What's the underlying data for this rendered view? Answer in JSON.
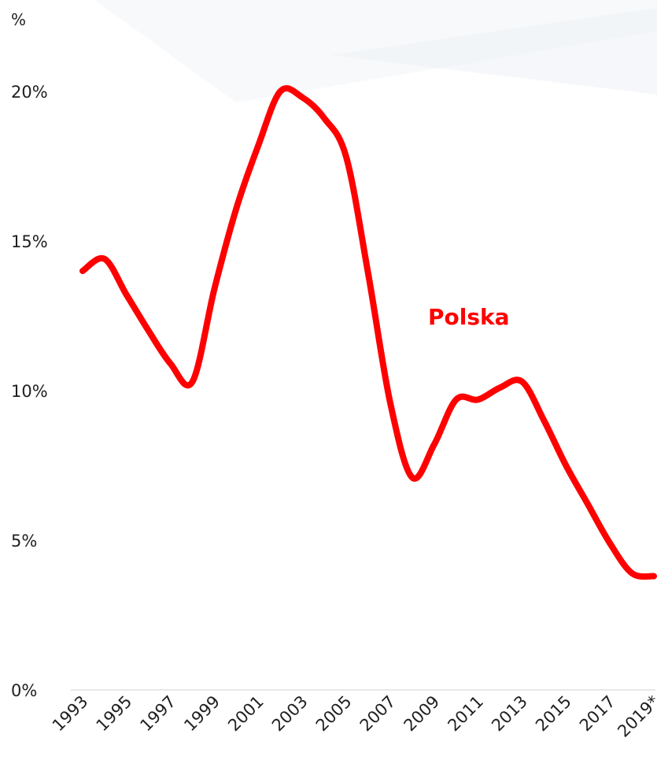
{
  "chart_data": {
    "type": "line",
    "title": "",
    "xlabel": "",
    "ylabel": "%",
    "ylim": [
      0,
      20
    ],
    "y_ticks": [
      0,
      5,
      10,
      15,
      20
    ],
    "y_tick_labels": [
      "0%",
      "5%",
      "10%",
      "15%",
      "20%"
    ],
    "x_tick_labels": [
      "1993",
      "1995",
      "1997",
      "1999",
      "2001",
      "2003",
      "2005",
      "2007",
      "2009",
      "2011",
      "2013",
      "2015",
      "2017",
      "2019*"
    ],
    "grid": false,
    "series": [
      {
        "name": "Polska",
        "color": "#ff0000",
        "x": [
          1993,
          1994,
          1995,
          1996,
          1997,
          1998,
          1999,
          2000,
          2001,
          2002,
          2003,
          2004,
          2005,
          2006,
          2007,
          2008,
          2009,
          2010,
          2011,
          2012,
          2013,
          2014,
          2015,
          2016,
          2017,
          2018,
          2019
        ],
        "y": [
          14.0,
          14.4,
          13.2,
          12.0,
          10.9,
          10.3,
          13.4,
          16.1,
          18.2,
          20.0,
          19.8,
          19.1,
          17.8,
          13.9,
          9.6,
          7.1,
          8.2,
          9.7,
          9.7,
          10.1,
          10.3,
          9.0,
          7.5,
          6.2,
          4.9,
          3.9,
          3.8
        ]
      }
    ],
    "legend": "inline-label"
  }
}
